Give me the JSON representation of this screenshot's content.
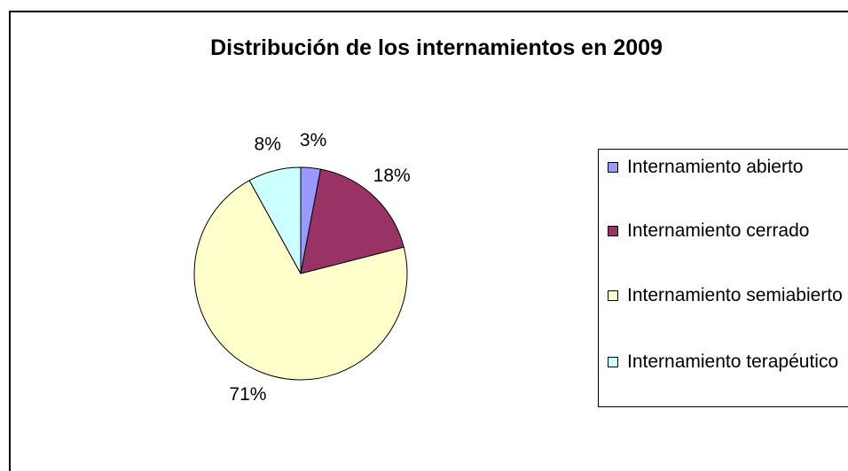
{
  "chart_data": {
    "type": "pie",
    "title": "Distribución de los internamientos en 2009",
    "categories": [
      "Internamiento abierto",
      "Internamiento cerrado",
      "Internamiento semiabierto",
      "Internamiento terapéutico"
    ],
    "values": [
      3,
      18,
      71,
      8
    ],
    "value_labels": [
      "3%",
      "18%",
      "71%",
      "8%"
    ],
    "colors": [
      "#9999ff",
      "#993366",
      "#ffffcc",
      "#ccffff"
    ],
    "legend": "right"
  }
}
